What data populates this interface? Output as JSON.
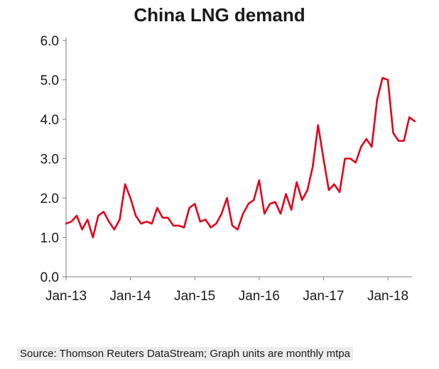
{
  "chart_data": {
    "type": "line",
    "title": "China LNG demand",
    "xlabel": "",
    "ylabel": "",
    "ylim": [
      0,
      6
    ],
    "yticks": [
      "0.0",
      "1.0",
      "2.0",
      "3.0",
      "4.0",
      "5.0",
      "6.0"
    ],
    "xticks": [
      "Jan-13",
      "Jan-14",
      "Jan-15",
      "Jan-16",
      "Jan-17",
      "Jan-18"
    ],
    "series": [
      {
        "name": "China LNG demand",
        "color": "#e3001b",
        "values": [
          1.35,
          1.4,
          1.55,
          1.2,
          1.45,
          1.0,
          1.55,
          1.65,
          1.4,
          1.2,
          1.45,
          2.35,
          2.0,
          1.55,
          1.35,
          1.4,
          1.35,
          1.75,
          1.5,
          1.5,
          1.3,
          1.3,
          1.25,
          1.75,
          1.85,
          1.4,
          1.45,
          1.25,
          1.35,
          1.6,
          2.0,
          1.3,
          1.2,
          1.6,
          1.85,
          1.95,
          2.45,
          1.6,
          1.85,
          1.9,
          1.6,
          2.1,
          1.7,
          2.4,
          1.95,
          2.2,
          2.8,
          3.85,
          3.0,
          2.2,
          2.35,
          2.15,
          3.0,
          3.0,
          2.9,
          3.3,
          3.5,
          3.3,
          4.5,
          5.05,
          5.0,
          3.65,
          3.45,
          3.45,
          4.05,
          3.95
        ]
      }
    ]
  },
  "source_note": "Source: Thomson Reuters DataStream; Graph units are monthly mtpa"
}
